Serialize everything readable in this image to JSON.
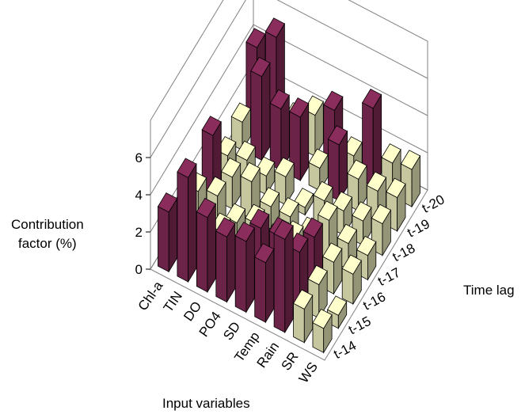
{
  "chart_data": {
    "type": "bar3d",
    "title": "",
    "zlabel_lines": [
      "Contribution",
      "factor (%)"
    ],
    "xlabel": "Input variables",
    "ylabel": "Time lag",
    "variables": [
      "Chl-a",
      "TIN",
      "DO",
      "PO4",
      "SD",
      "Temp",
      "Rain",
      "SR",
      "WS"
    ],
    "time_lags": [
      "t-14",
      "t-15",
      "t-16",
      "t-17",
      "t-18",
      "t-19",
      "t-20"
    ],
    "z_ticks": [
      "0",
      "2",
      "4",
      "6"
    ],
    "zlim": [
      0,
      8
    ],
    "grid": true,
    "colors": {
      "high": "#8b2d5c",
      "low": "#ffffcc",
      "floor_edge": "#808080"
    },
    "values": [
      [
        3.2,
        2.0,
        1.7,
        3.4,
        1.0,
        1.5,
        4.2
      ],
      [
        5.6,
        1.4,
        2.0,
        1.7,
        1.3,
        4.5,
        5.3
      ],
      [
        4.0,
        1.9,
        1.1,
        2.0,
        1.0,
        3.3,
        1.3
      ],
      [
        3.5,
        1.5,
        1.6,
        1.2,
        1.5,
        3.4,
        2.2
      ],
      [
        3.8,
        3.2,
        1.1,
        1.2,
        0.4,
        1.2,
        3.0
      ],
      [
        3.2,
        3.3,
        1.8,
        0.7,
        1.3,
        3.0,
        1.1
      ],
      [
        5.0,
        3.0,
        2.5,
        2.1,
        1.3,
        1.7,
        4.2
      ],
      [
        1.8,
        1.8,
        1.7,
        1.4,
        1.3,
        1.6,
        1.8
      ],
      [
        1.3,
        0.7,
        1.6,
        1.3,
        1.7,
        1.8,
        2.0
      ]
    ]
  }
}
